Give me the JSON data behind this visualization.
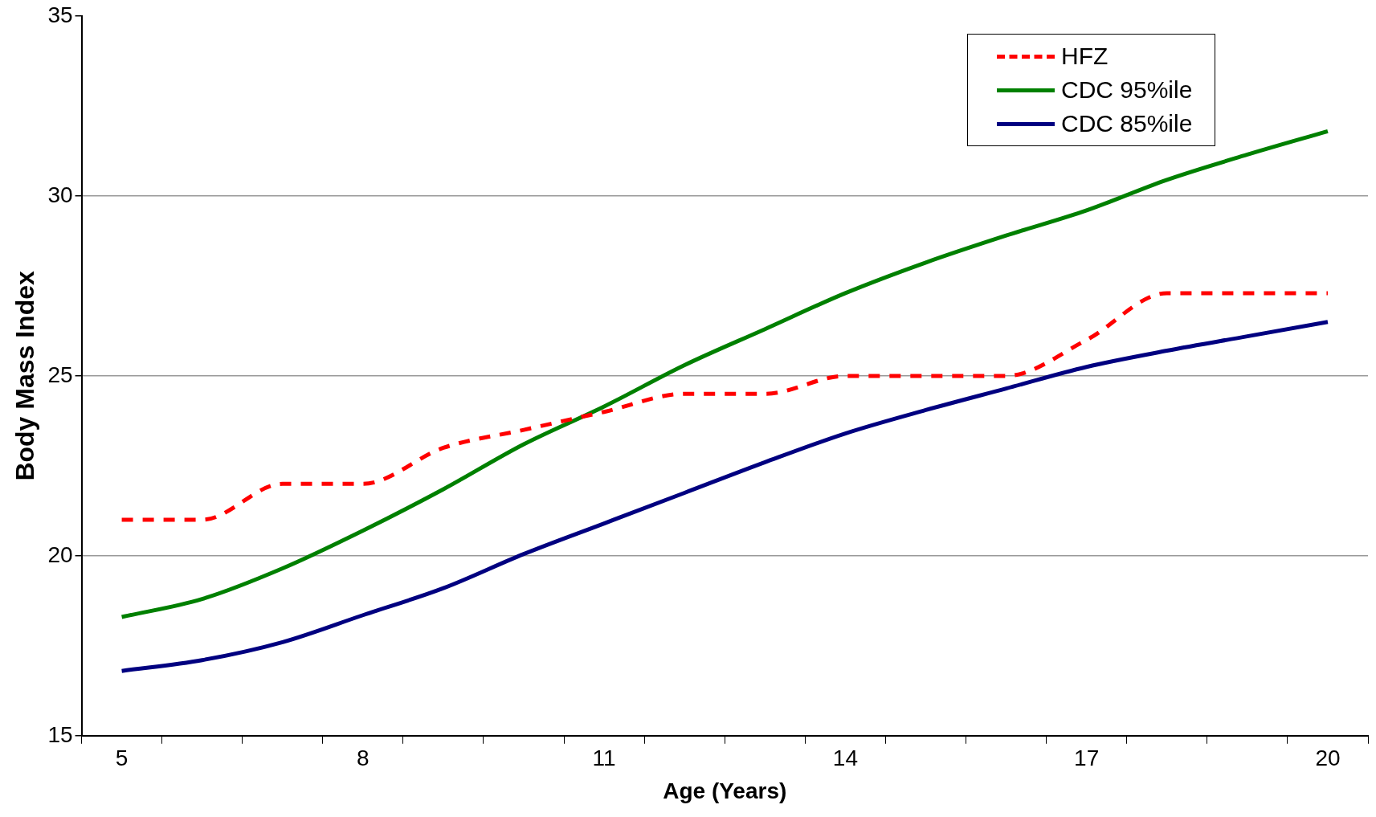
{
  "chart_data": {
    "type": "line",
    "xlabel": "Age (Years)",
    "ylabel": "Body Mass Index",
    "categories": [
      "5",
      null,
      null,
      "8",
      null,
      null,
      "11",
      null,
      null,
      "14",
      null,
      null,
      "17",
      null,
      null,
      "20"
    ],
    "series": [
      {
        "name": "HFZ",
        "color": "#ff0000",
        "line_style": "dashed",
        "values": [
          21,
          21,
          22,
          22,
          23,
          23.5,
          24,
          24.5,
          24.5,
          25,
          25,
          25,
          26,
          27.3,
          27.3,
          27.3
        ]
      },
      {
        "name": "CDC 95%ile",
        "color": "#008000",
        "line_style": "solid",
        "values": [
          18.3,
          18.8,
          19.65,
          20.7,
          21.85,
          23.1,
          24.15,
          25.3,
          26.3,
          27.3,
          28.15,
          28.9,
          29.6,
          30.45,
          31.15,
          31.8
        ]
      },
      {
        "name": "CDC 85%ile",
        "color": "#000080",
        "line_style": "solid",
        "values": [
          16.8,
          17.1,
          17.6,
          18.35,
          19.1,
          20.05,
          20.9,
          21.75,
          22.6,
          23.4,
          24.05,
          24.65,
          25.25,
          25.7,
          26.1,
          26.5
        ]
      }
    ],
    "ylim": [
      15,
      35
    ],
    "yticks": [
      15,
      20,
      25,
      30,
      35
    ],
    "grid": "y",
    "legend": "top right",
    "marker": "none"
  }
}
